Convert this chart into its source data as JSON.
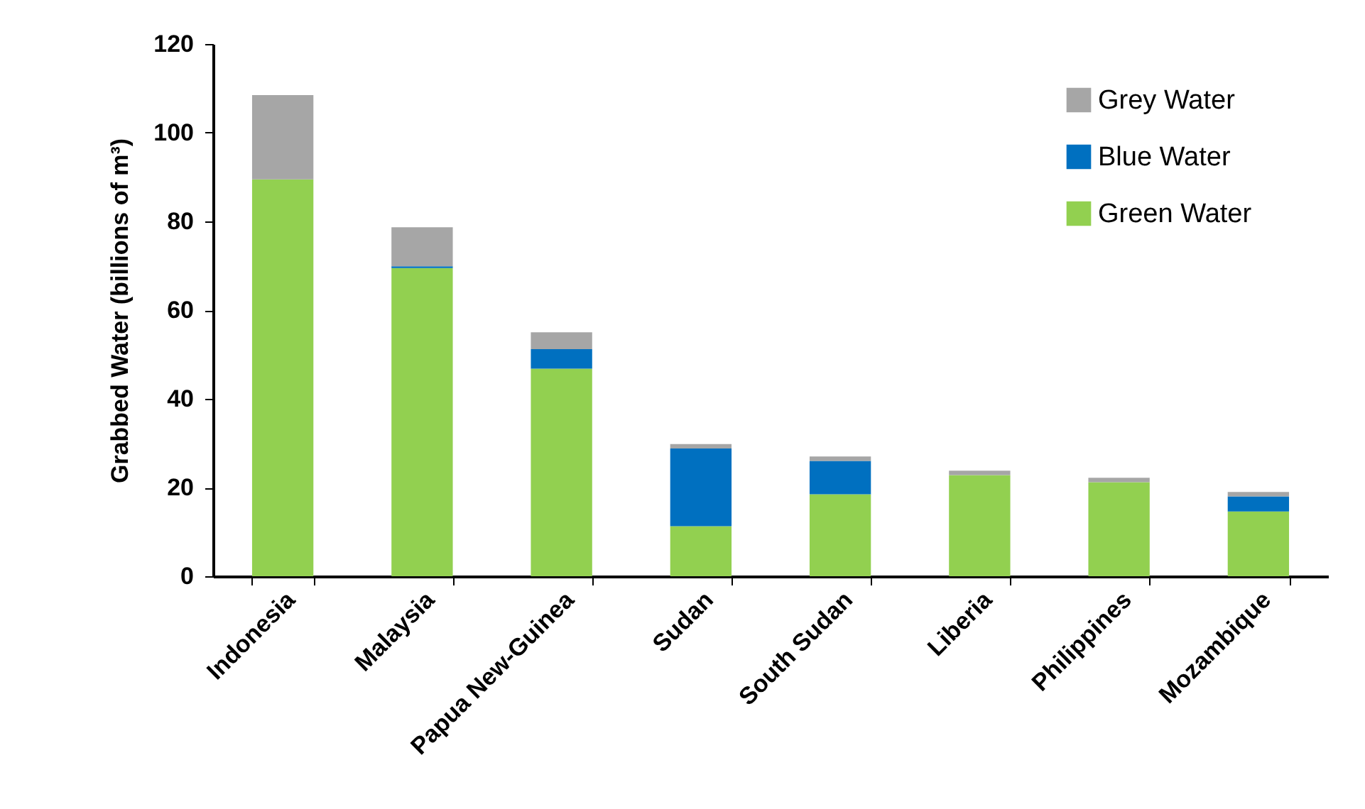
{
  "chart_data": {
    "type": "bar",
    "stacked": true,
    "ylabel": "Grabbed Water (billions of m³)",
    "categories": [
      "Indonesia",
      "Malaysia",
      "Papua New-Guinea",
      "Sudan",
      "South Sudan",
      "Liberia",
      "Philippines",
      "Mozambique"
    ],
    "series": [
      {
        "name": "Green Water",
        "color": "#92d050",
        "values": [
          89.5,
          69.5,
          46.8,
          11.3,
          18.5,
          22.8,
          21.2,
          14.6
        ]
      },
      {
        "name": "Blue Water",
        "color": "#0070c0",
        "values": [
          0,
          0.4,
          4.4,
          17.5,
          7.5,
          0,
          0,
          3.4
        ]
      },
      {
        "name": "Grey Water",
        "color": "#a6a6a6",
        "values": [
          19,
          8.8,
          3.8,
          1,
          1,
          1,
          1,
          1
        ]
      }
    ],
    "ylim": [
      0,
      120
    ],
    "yticks": [
      0,
      20,
      40,
      60,
      80,
      100,
      120
    ],
    "grid": false,
    "legend": "top right"
  }
}
